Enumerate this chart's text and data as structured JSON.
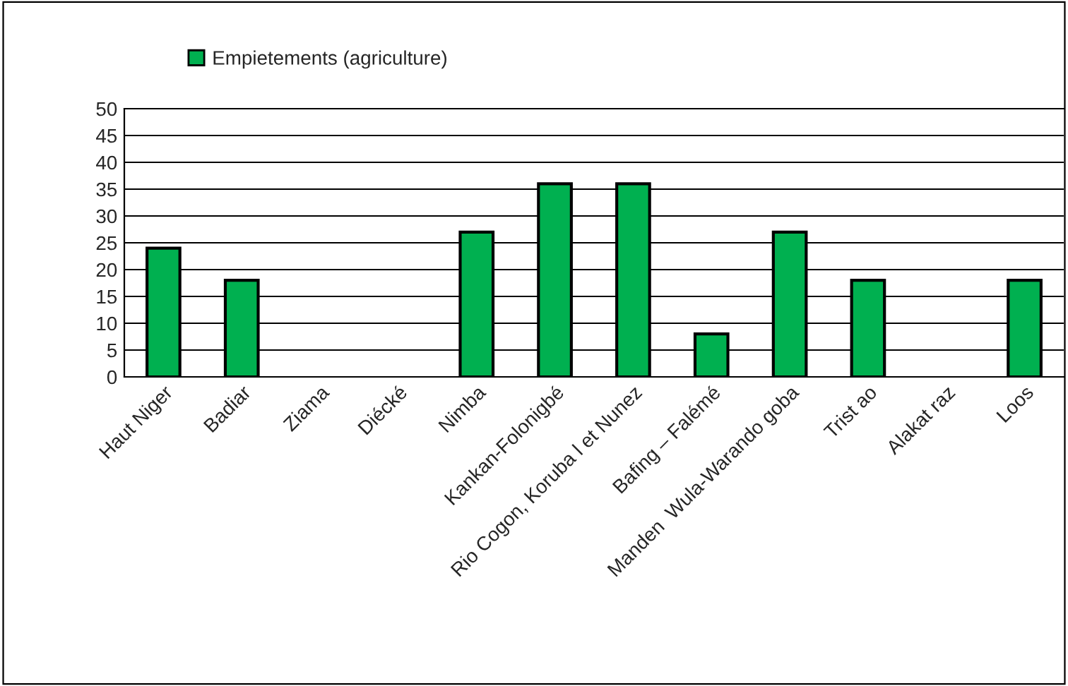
{
  "chart_data": {
    "type": "bar",
    "categories": [
      "Haut Niger",
      "Badiar",
      "Ziama",
      "Diécké",
      "Nimba",
      "Kankan-Folonigbé",
      "Rio Cogon, Koruba l et Nunez",
      "Bafing – Falémé",
      "Manden  Wula-Warando goba",
      "Trist ao",
      "Alakat raz",
      "Loos"
    ],
    "series": [
      {
        "name": "Empietements (agriculture)",
        "color": "#00b050",
        "values": [
          24,
          18,
          null,
          null,
          27,
          36,
          36,
          8,
          27,
          18,
          null,
          18
        ]
      }
    ],
    "ylim": [
      0,
      50
    ],
    "yticks": [
      0,
      5,
      10,
      15,
      20,
      25,
      30,
      35,
      40,
      45,
      50
    ],
    "grid": "y",
    "legend": "top left"
  }
}
